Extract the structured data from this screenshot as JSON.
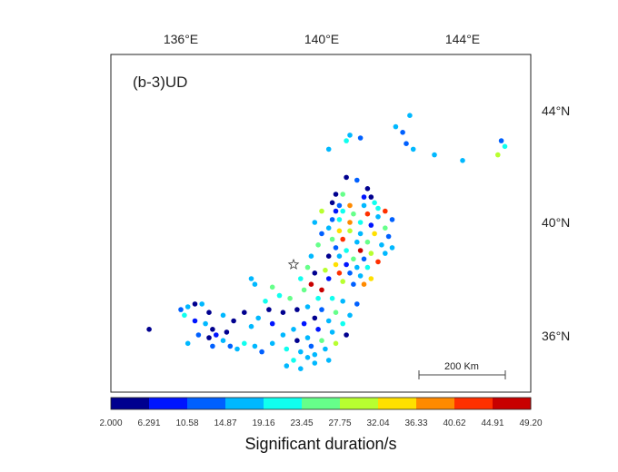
{
  "map": {
    "panel_label": "(b-3)UD",
    "lon_ticks": [
      "136°E",
      "140°E",
      "144°E"
    ],
    "lat_ticks": [
      "44°N",
      "40°N",
      "36°N"
    ],
    "scale_bar_label": "200 Km",
    "epicenter_marker": "star-icon"
  },
  "colorbar": {
    "title": "Significant duration/s",
    "tick_labels": [
      "2.000",
      "6.291",
      "10.58",
      "14.87",
      "19.16",
      "23.45",
      "27.75",
      "32.04",
      "36.33",
      "40.62",
      "44.91",
      "49.20"
    ],
    "colors": [
      "#00008f",
      "#0015ff",
      "#0060ff",
      "#00b8ff",
      "#10ffef",
      "#66ff8a",
      "#b8ff30",
      "#ffe000",
      "#ff8a00",
      "#ff3000",
      "#c80000"
    ]
  },
  "chart_data": {
    "type": "scatter",
    "xlabel": "",
    "ylabel": "",
    "colorbar_label": "Significant duration/s",
    "color_range": [
      2.0,
      49.2
    ],
    "x_ticks": [
      "136°E",
      "140°E",
      "144°E"
    ],
    "y_ticks": [
      "44°N",
      "40°N",
      "36°N"
    ],
    "epicenter": {
      "lon": 139.2,
      "lat": 38.5
    },
    "points": [
      [
        142.5,
        43.8,
        17
      ],
      [
        142.1,
        43.4,
        18
      ],
      [
        142.3,
        43.2,
        14
      ],
      [
        140.8,
        43.1,
        18
      ],
      [
        141.1,
        43.0,
        14
      ],
      [
        142.4,
        42.8,
        13
      ],
      [
        142.6,
        42.6,
        17
      ],
      [
        143.2,
        42.4,
        15
      ],
      [
        144.0,
        42.2,
        18
      ],
      [
        145.0,
        42.4,
        29
      ],
      [
        145.1,
        42.9,
        14
      ],
      [
        145.2,
        42.7,
        20
      ],
      [
        140.7,
        42.9,
        23
      ],
      [
        140.2,
        42.6,
        15
      ],
      [
        140.7,
        41.6,
        3
      ],
      [
        141.0,
        41.5,
        14
      ],
      [
        141.3,
        41.2,
        5
      ],
      [
        140.4,
        41.0,
        3
      ],
      [
        140.6,
        41.0,
        25
      ],
      [
        141.2,
        40.9,
        10
      ],
      [
        141.4,
        40.9,
        6
      ],
      [
        141.5,
        40.7,
        21
      ],
      [
        140.3,
        40.7,
        4
      ],
      [
        140.5,
        40.6,
        13
      ],
      [
        140.8,
        40.6,
        37
      ],
      [
        141.2,
        40.6,
        17
      ],
      [
        141.6,
        40.5,
        22
      ],
      [
        141.8,
        40.4,
        41
      ],
      [
        140.4,
        40.4,
        8
      ],
      [
        140.6,
        40.4,
        20
      ],
      [
        140.9,
        40.3,
        27
      ],
      [
        141.3,
        40.3,
        41
      ],
      [
        141.6,
        40.2,
        16
      ],
      [
        142.0,
        40.1,
        14
      ],
      [
        140.3,
        40.1,
        13
      ],
      [
        140.5,
        40.1,
        22
      ],
      [
        140.8,
        40.0,
        40
      ],
      [
        141.1,
        40.0,
        22
      ],
      [
        141.4,
        39.9,
        9
      ],
      [
        141.8,
        39.8,
        26
      ],
      [
        140.2,
        39.8,
        17
      ],
      [
        140.5,
        39.7,
        35
      ],
      [
        140.8,
        39.7,
        32
      ],
      [
        141.1,
        39.6,
        15
      ],
      [
        141.5,
        39.6,
        33
      ],
      [
        141.9,
        39.5,
        12
      ],
      [
        140.3,
        39.4,
        24
      ],
      [
        140.6,
        39.4,
        42
      ],
      [
        141.0,
        39.3,
        18
      ],
      [
        141.3,
        39.3,
        27
      ],
      [
        141.7,
        39.2,
        15
      ],
      [
        142.0,
        39.1,
        17
      ],
      [
        140.4,
        39.1,
        14
      ],
      [
        140.7,
        39.0,
        21
      ],
      [
        141.1,
        39.0,
        46
      ],
      [
        141.4,
        38.9,
        30
      ],
      [
        141.8,
        38.9,
        19
      ],
      [
        140.2,
        38.8,
        5
      ],
      [
        140.5,
        38.8,
        17
      ],
      [
        140.9,
        38.7,
        25
      ],
      [
        141.2,
        38.7,
        13
      ],
      [
        141.6,
        38.6,
        41
      ],
      [
        140.4,
        38.5,
        33
      ],
      [
        140.7,
        38.5,
        10
      ],
      [
        141.0,
        38.4,
        16
      ],
      [
        141.3,
        38.4,
        22
      ],
      [
        140.1,
        38.3,
        28
      ],
      [
        140.5,
        38.2,
        44
      ],
      [
        140.8,
        38.2,
        11
      ],
      [
        141.1,
        38.1,
        19
      ],
      [
        141.4,
        38.0,
        36
      ],
      [
        140.2,
        38.0,
        9
      ],
      [
        140.6,
        37.9,
        28
      ],
      [
        140.9,
        37.8,
        14
      ],
      [
        141.2,
        37.8,
        40
      ],
      [
        139.7,
        38.8,
        16
      ],
      [
        139.9,
        39.2,
        26
      ],
      [
        140.0,
        39.6,
        12
      ],
      [
        139.8,
        40.0,
        15
      ],
      [
        140.0,
        40.4,
        30
      ],
      [
        139.6,
        38.4,
        24
      ],
      [
        139.8,
        38.2,
        3
      ],
      [
        139.4,
        38.0,
        22
      ],
      [
        139.7,
        37.8,
        47
      ],
      [
        140.0,
        37.6,
        45
      ],
      [
        139.5,
        37.6,
        25
      ],
      [
        139.9,
        37.3,
        22
      ],
      [
        140.3,
        37.3,
        20
      ],
      [
        140.6,
        37.2,
        18
      ],
      [
        141.0,
        37.1,
        14
      ],
      [
        139.6,
        37.0,
        17
      ],
      [
        140.0,
        36.9,
        13
      ],
      [
        140.4,
        36.8,
        24
      ],
      [
        140.8,
        36.7,
        17
      ],
      [
        139.3,
        36.9,
        6
      ],
      [
        139.8,
        36.6,
        3
      ],
      [
        140.2,
        36.5,
        16
      ],
      [
        140.6,
        36.4,
        21
      ],
      [
        139.5,
        36.4,
        10
      ],
      [
        139.9,
        36.2,
        8
      ],
      [
        140.3,
        36.1,
        17
      ],
      [
        140.7,
        36.0,
        4
      ],
      [
        139.2,
        36.2,
        15
      ],
      [
        139.6,
        35.9,
        19
      ],
      [
        140.0,
        35.8,
        26
      ],
      [
        140.4,
        35.7,
        30
      ],
      [
        138.9,
        36.0,
        16
      ],
      [
        139.3,
        35.8,
        5
      ],
      [
        139.7,
        35.6,
        13
      ],
      [
        140.1,
        35.5,
        19
      ],
      [
        138.6,
        35.7,
        15
      ],
      [
        139.0,
        35.5,
        20
      ],
      [
        139.4,
        35.4,
        17
      ],
      [
        139.8,
        35.3,
        15
      ],
      [
        139.2,
        35.1,
        22
      ],
      [
        139.6,
        35.2,
        18
      ],
      [
        139.0,
        34.9,
        16
      ],
      [
        139.4,
        34.8,
        16
      ],
      [
        139.8,
        35.0,
        18
      ],
      [
        140.2,
        35.1,
        16
      ],
      [
        138.4,
        37.2,
        20
      ],
      [
        138.8,
        37.4,
        22
      ],
      [
        139.1,
        37.3,
        26
      ],
      [
        138.5,
        36.9,
        4
      ],
      [
        138.9,
        36.8,
        6
      ],
      [
        138.2,
        36.6,
        16
      ],
      [
        138.6,
        36.4,
        8
      ],
      [
        138.0,
        36.3,
        15
      ],
      [
        137.8,
        36.8,
        3
      ],
      [
        137.5,
        36.5,
        5
      ],
      [
        137.2,
        36.7,
        18
      ],
      [
        136.9,
        36.2,
        4
      ],
      [
        136.7,
        36.4,
        18
      ],
      [
        136.5,
        36.0,
        12
      ],
      [
        136.8,
        35.9,
        3
      ],
      [
        136.4,
        36.5,
        10
      ],
      [
        136.1,
        36.7,
        20
      ],
      [
        136.0,
        36.9,
        14
      ],
      [
        136.2,
        37.0,
        18
      ],
      [
        136.4,
        37.1,
        5
      ],
      [
        136.6,
        37.1,
        17
      ],
      [
        136.8,
        36.8,
        6
      ],
      [
        137.0,
        36.0,
        10
      ],
      [
        137.2,
        35.8,
        17
      ],
      [
        137.4,
        35.6,
        14
      ],
      [
        137.6,
        35.5,
        16
      ],
      [
        137.8,
        35.7,
        20
      ],
      [
        138.1,
        35.6,
        15
      ],
      [
        138.3,
        35.4,
        13
      ],
      [
        136.2,
        35.7,
        17
      ],
      [
        135.1,
        36.2,
        4
      ],
      [
        138.0,
        38.0,
        17
      ],
      [
        138.1,
        37.8,
        18
      ],
      [
        138.6,
        37.7,
        26
      ],
      [
        137.3,
        36.1,
        6
      ],
      [
        136.9,
        35.6,
        14
      ]
    ]
  }
}
